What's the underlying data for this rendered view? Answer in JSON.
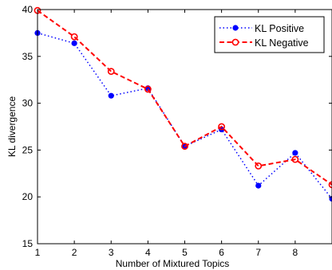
{
  "chart_data": {
    "type": "line",
    "title": "",
    "xlabel": "Number of Mixtured Topics",
    "ylabel": "KL divergence",
    "xlim": [
      1,
      9
    ],
    "ylim": [
      15,
      40
    ],
    "x_ticks": [
      1,
      2,
      3,
      4,
      5,
      6,
      7,
      8
    ],
    "y_ticks": [
      15,
      20,
      25,
      30,
      35,
      40
    ],
    "grid": false,
    "legend_position": "top-right",
    "series": [
      {
        "name": "KL Positive",
        "color": "#0000ff",
        "line_style": "dotted",
        "marker": "filled-circle",
        "x": [
          1,
          2,
          3,
          4,
          5,
          6,
          7,
          8,
          9
        ],
        "y": [
          37.5,
          36.4,
          30.8,
          31.6,
          25.4,
          27.2,
          21.2,
          24.7,
          19.8
        ]
      },
      {
        "name": "KL Negative",
        "color": "#ff0000",
        "line_style": "dashed",
        "marker": "open-circle",
        "x": [
          1,
          2,
          3,
          4,
          5,
          6,
          7,
          8,
          9
        ],
        "y": [
          39.9,
          37.1,
          33.4,
          31.5,
          25.4,
          27.5,
          23.3,
          24.0,
          21.3
        ]
      }
    ]
  }
}
